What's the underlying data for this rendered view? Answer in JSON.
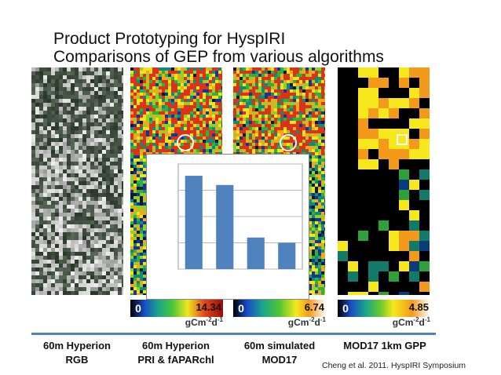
{
  "slide": {
    "title_line1": "Product Prototyping for HyspIRI",
    "title_line2": "Comparisons of GEP from various algorithms",
    "citation": "Cheng et al. 2011. HyspIRI Symposium"
  },
  "panels": [
    {
      "caption_line1": "60m Hyperion",
      "caption_line2": "RGB"
    },
    {
      "caption_line1": "60m Hyperion",
      "caption_line2": "PRI & fAPARchl",
      "scale_min": "0",
      "scale_max": "14.34"
    },
    {
      "caption_line1": "60m simulated",
      "caption_line2": "MOD17",
      "scale_min": "0",
      "scale_max": "6.74"
    },
    {
      "caption_line1": "MOD17 1km GPP",
      "caption_line2": "",
      "scale_min": "0",
      "scale_max": "4.85"
    }
  ],
  "units": {
    "base": "gCm",
    "exp1": "-2",
    "mid": "d",
    "exp2": "-1"
  },
  "colors": {
    "divider": "#4f81bd",
    "bar": "#4f81bd"
  },
  "chart_data": {
    "type": "bar",
    "categories": [
      "",
      "",
      "",
      ""
    ],
    "values": [
      7.1,
      6.4,
      2.4,
      2.0
    ],
    "ylim": [
      0,
      8
    ],
    "grid": true,
    "title": "",
    "xlabel": "",
    "ylabel": ""
  }
}
